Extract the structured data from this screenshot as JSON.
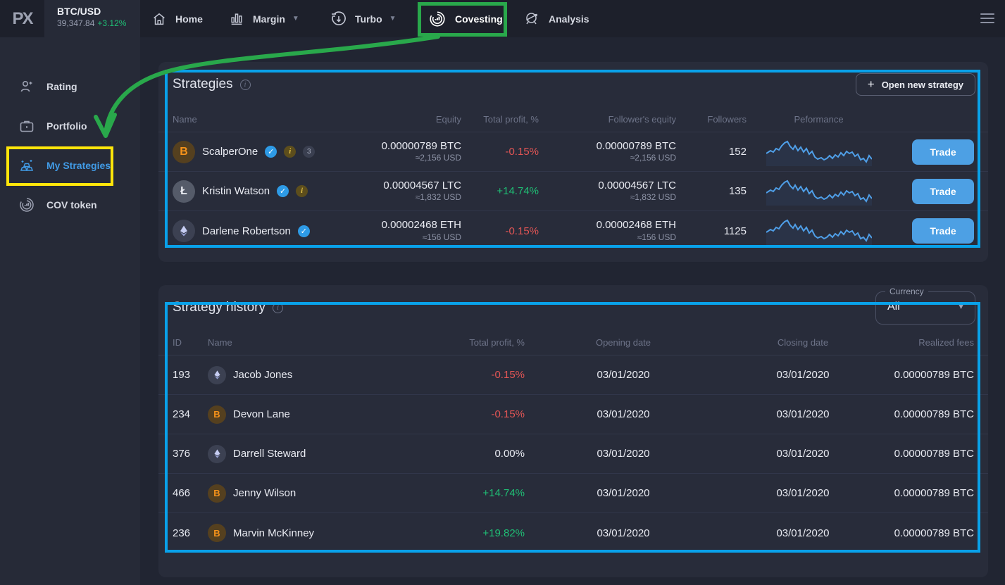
{
  "topbar": {
    "logo_text": "PX",
    "ticker": {
      "pair": "BTC/USD",
      "price": "39,347.84",
      "change": "+3.12%"
    },
    "nav": [
      {
        "label": "Home"
      },
      {
        "label": "Margin",
        "dropdown": true
      },
      {
        "label": "Turbo",
        "dropdown": true
      },
      {
        "label": "Covesting",
        "active": true
      },
      {
        "label": "Analysis"
      }
    ]
  },
  "sidebar": {
    "items": [
      {
        "label": "Rating"
      },
      {
        "label": "Portfolio"
      },
      {
        "label": "My Strategies",
        "active": true
      },
      {
        "label": "COV token"
      }
    ]
  },
  "strategies": {
    "title": "Strategies",
    "new_button": "Open new strategy",
    "columns": [
      "Name",
      "Equity",
      "Total profit, %",
      "Follower's equity",
      "Followers",
      "Peformance"
    ],
    "rows": [
      {
        "name": "ScalperOne",
        "coin": "btc",
        "verified": true,
        "info": true,
        "count": "3",
        "equity": "0.00000789 BTC",
        "equity_usd": "≈2,156 USD",
        "profit": "-0.15%",
        "profit_color": "neg",
        "follower_equity": "0.00000789 BTC",
        "follower_equity_usd": "≈2,156 USD",
        "followers": "152",
        "trade_label": "Trade"
      },
      {
        "name": "Kristin Watson",
        "coin": "ltc",
        "verified": true,
        "info": true,
        "equity": "0.00004567 LTC",
        "equity_usd": "≈1,832 USD",
        "profit": "+14.74%",
        "profit_color": "pos",
        "follower_equity": "0.00004567 LTC",
        "follower_equity_usd": "≈1,832 USD",
        "followers": "135",
        "trade_label": "Trade"
      },
      {
        "name": "Darlene Robertson",
        "coin": "eth",
        "verified": true,
        "equity": "0.00002468 ETH",
        "equity_usd": "≈156 USD",
        "profit": "-0.15%",
        "profit_color": "neg",
        "follower_equity": "0.00002468 ETH",
        "follower_equity_usd": "≈156 USD",
        "followers": "1125",
        "trade_label": "Trade"
      }
    ]
  },
  "history": {
    "title": "Strategy history",
    "currency_filter": {
      "label": "Currency",
      "value": "All"
    },
    "columns": [
      "ID",
      "Name",
      "Total profit, %",
      "Opening date",
      "Closing date",
      "Realized fees"
    ],
    "rows": [
      {
        "id": "193",
        "name": "Jacob Jones",
        "coin": "eth",
        "profit": "-0.15%",
        "profit_color": "neg",
        "opening": "03/01/2020",
        "closing": "03/01/2020",
        "fees": "0.00000789 BTC"
      },
      {
        "id": "234",
        "name": "Devon Lane",
        "coin": "btc",
        "profit": "-0.15%",
        "profit_color": "neg",
        "opening": "03/01/2020",
        "closing": "03/01/2020",
        "fees": "0.00000789 BTC"
      },
      {
        "id": "376",
        "name": "Darrell Steward",
        "coin": "eth",
        "profit": "0.00%",
        "profit_color": "flat",
        "opening": "03/01/2020",
        "closing": "03/01/2020",
        "fees": "0.00000789 BTC"
      },
      {
        "id": "466",
        "name": "Jenny Wilson",
        "coin": "btc",
        "profit": "+14.74%",
        "profit_color": "pos",
        "opening": "03/01/2020",
        "closing": "03/01/2020",
        "fees": "0.00000789 BTC"
      },
      {
        "id": "236",
        "name": "Marvin McKinney",
        "coin": "btc",
        "profit": "+19.82%",
        "profit_color": "pos",
        "opening": "03/01/2020",
        "closing": "03/01/2020",
        "fees": "0.00000789 BTC"
      }
    ]
  },
  "colors": {
    "positive": "#1fbf75",
    "negative": "#e25555",
    "trade_button": "#4da0e4",
    "link_blue": "#419be6",
    "annotation_blue": "#09a1e9",
    "annotation_green": "#29a84b",
    "annotation_yellow": "#ffe50a",
    "sparkline": "#4f9fe8"
  }
}
